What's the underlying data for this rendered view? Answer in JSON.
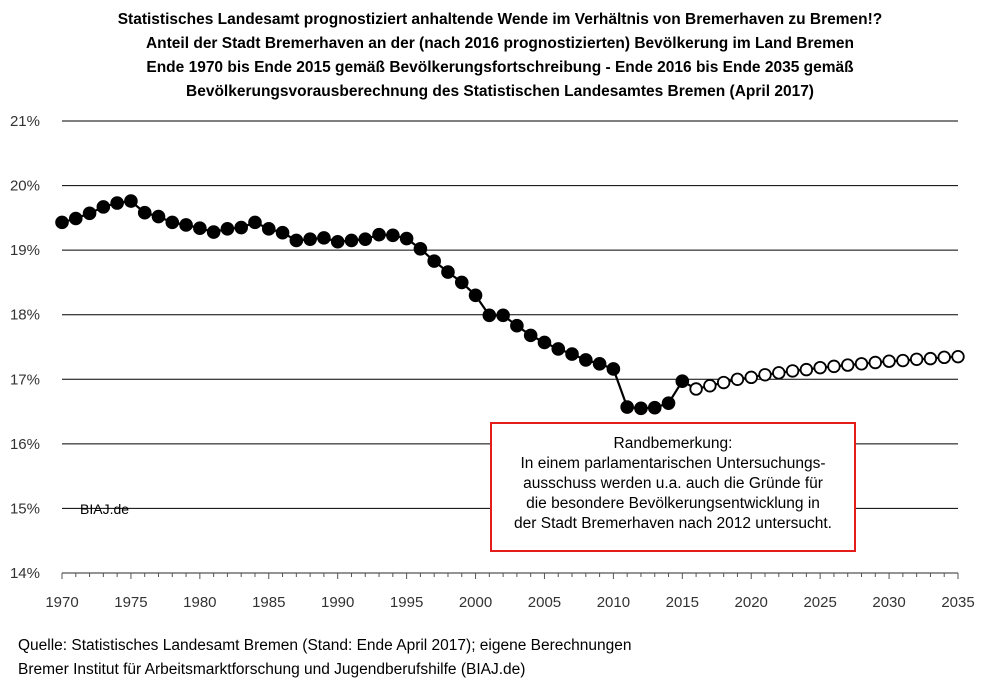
{
  "title_lines": [
    "Statistisches Landesamt prognostiziert anhaltende Wende im Verhältnis von Bremerhaven zu Bremen!?",
    "Anteil der Stadt Bremerhaven an der (nach 2016 prognostizierten) Bevölkerung im Land Bremen",
    "Ende 1970 bis Ende 2015 gemäß Bevölkerungsfortschreibung - Ende 2016 bis Ende 2035 gemäß",
    "Bevölkerungsvorausberechnung des Statistischen Landesamtes Bremen (April 2017)"
  ],
  "watermark": "BIAJ.de",
  "note": {
    "lines": [
      "Randbemerkung:",
      "In einem parlamentarischen Untersuchungs-",
      "ausschuss werden u.a. auch die Gründe für",
      "die besondere Bevölkerungsentwicklung in",
      "der Stadt Bremerhaven nach 2012 untersucht."
    ],
    "border_color": "#e41c1c"
  },
  "source_lines": [
    "Quelle: Statistisches Landesamt Bremen (Stand: Ende April 2017); eigene Berechnungen",
    "Bremer Institut für Arbeitsmarktforschung und Jugendberufshilfe (BIAJ.de)"
  ],
  "chart_data": {
    "type": "line",
    "title": "",
    "xlabel": "",
    "ylabel": "",
    "xlim": [
      1970,
      2035
    ],
    "ylim": [
      14,
      21
    ],
    "x_ticks": [
      1970,
      1975,
      1980,
      1985,
      1990,
      1995,
      2000,
      2005,
      2010,
      2015,
      2020,
      2025,
      2030,
      2035
    ],
    "y_ticks": [
      14,
      15,
      16,
      17,
      18,
      19,
      20,
      21
    ],
    "y_tick_labels": [
      "14%",
      "15%",
      "16%",
      "17%",
      "18%",
      "19%",
      "20%",
      "21%"
    ],
    "grid": "horizontal",
    "series": [
      {
        "marker": "filled-circle",
        "color": "#000000",
        "x": [
          1970,
          1971,
          1972,
          1973,
          1974,
          1975,
          1976,
          1977,
          1978,
          1979,
          1980,
          1981,
          1982,
          1983,
          1984,
          1985,
          1986,
          1987,
          1988,
          1989,
          1990,
          1991,
          1992,
          1993,
          1994,
          1995,
          1996,
          1997,
          1998,
          1999,
          2000,
          2001,
          2002,
          2003,
          2004,
          2005,
          2006,
          2007,
          2008,
          2009,
          2010,
          2011,
          2012,
          2013,
          2014,
          2015
        ],
        "values": [
          19.43,
          19.49,
          19.57,
          19.67,
          19.73,
          19.76,
          19.58,
          19.52,
          19.43,
          19.39,
          19.34,
          19.28,
          19.33,
          19.35,
          19.43,
          19.33,
          19.27,
          19.15,
          19.17,
          19.19,
          19.13,
          19.15,
          19.17,
          19.24,
          19.23,
          19.18,
          19.02,
          18.83,
          18.66,
          18.5,
          18.3,
          17.99,
          17.99,
          17.83,
          17.68,
          17.57,
          17.47,
          17.39,
          17.3,
          17.24,
          17.16,
          16.57,
          16.55,
          16.56,
          16.63,
          16.97
        ]
      },
      {
        "marker": "open-circle",
        "color": "#000000",
        "x": [
          2016,
          2017,
          2018,
          2019,
          2020,
          2021,
          2022,
          2023,
          2024,
          2025,
          2026,
          2027,
          2028,
          2029,
          2030,
          2031,
          2032,
          2033,
          2034,
          2035
        ],
        "values": [
          16.85,
          16.9,
          16.95,
          17.0,
          17.03,
          17.07,
          17.1,
          17.13,
          17.15,
          17.18,
          17.2,
          17.22,
          17.24,
          17.26,
          17.28,
          17.29,
          17.31,
          17.32,
          17.34,
          17.35
        ]
      }
    ]
  }
}
